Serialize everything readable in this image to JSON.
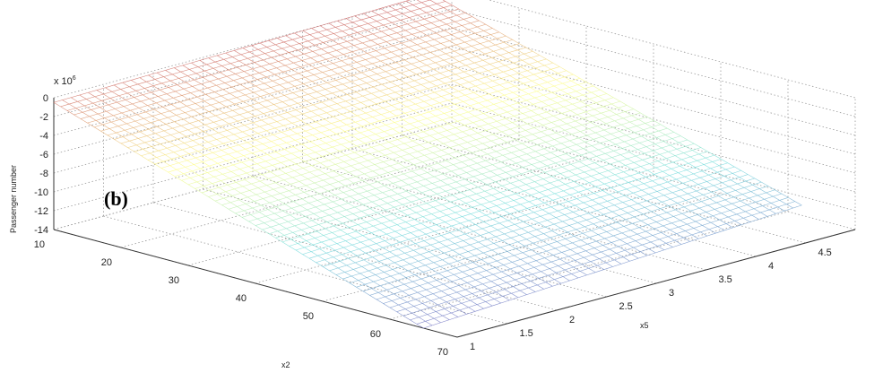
{
  "chart_data": {
    "type": "surface",
    "panel_label": "(b)",
    "xlabel": "x2",
    "ylabel": "x5",
    "zlabel": "Passenger number",
    "z_exponent_label": "x 10",
    "z_exponent_power": "6",
    "x_range": [
      10,
      70
    ],
    "y_range": [
      1,
      5
    ],
    "z_range": [
      -14,
      0
    ],
    "x_ticks": [
      "10",
      "20",
      "30",
      "40",
      "50",
      "60",
      "70"
    ],
    "y_ticks": [
      "1",
      "1.5",
      "2",
      "2.5",
      "3",
      "3.5",
      "4",
      "4.5"
    ],
    "z_ticks": [
      "0",
      "-2",
      "-4",
      "-6",
      "-8",
      "-10",
      "-12",
      "-14"
    ],
    "surface_corners": {
      "x2_10_x5_1": -0.5,
      "x2_10_x5_4.8": 0.2,
      "x2_65_x5_1": -14.0,
      "x2_65_x5_4.8": -11.8
    },
    "grid": true,
    "colormap": [
      "#8080c8",
      "#80e0e0",
      "#ffff90",
      "#d07070"
    ]
  }
}
